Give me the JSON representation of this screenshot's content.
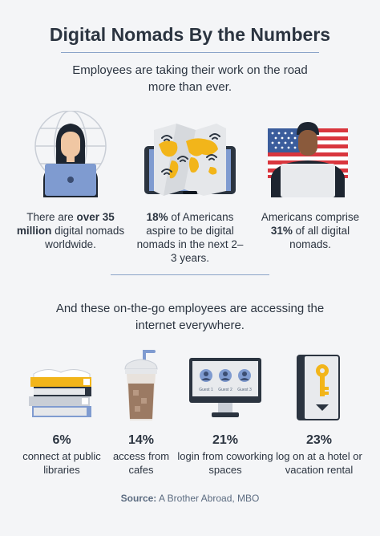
{
  "title": "Digital Nomads By the Numbers",
  "subtitle": "Employees are taking their work on the road more than ever.",
  "top_stats": [
    {
      "pre": "There are ",
      "bold": "over 35 million",
      "post": " digital nomads worldwide."
    },
    {
      "pre": "",
      "bold": "18%",
      "post": " of Americans aspire to be digital nomads in the next 2–3 years."
    },
    {
      "pre": "Americans comprise ",
      "bold": "31%",
      "post": " of all digital nomads."
    }
  ],
  "subtitle2": "And these on-the-go employees are accessing the internet everywhere.",
  "bottom_stats": [
    {
      "pct": "6%",
      "desc": "connect at public libraries"
    },
    {
      "pct": "14%",
      "desc": "access from cafes"
    },
    {
      "pct": "21%",
      "desc": "login from coworking spaces"
    },
    {
      "pct": "23%",
      "desc": "log on at a hotel or vacation rental"
    }
  ],
  "monitor_guests": [
    "Guest 1",
    "Guest 2",
    "Guest 3"
  ],
  "source": {
    "label": "Source:",
    "text": " A Brother Abroad, MBO"
  },
  "colors": {
    "navy": "#2b3440",
    "laptop_blue": "#7f9bd0",
    "map_yellow": "#f2b51a",
    "flag_red": "#d9363e",
    "rule_blue": "#8aa3c8"
  }
}
